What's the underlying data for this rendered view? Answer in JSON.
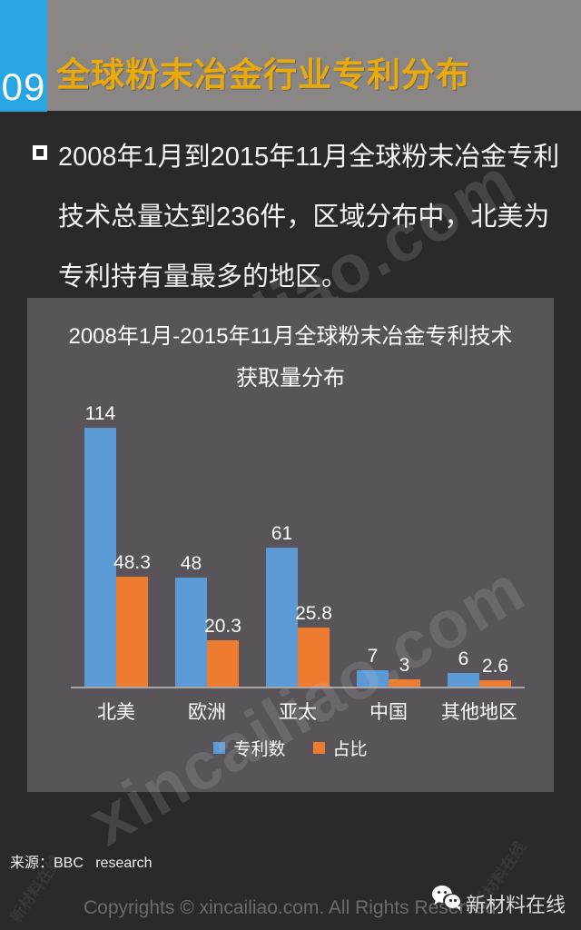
{
  "header": {
    "index": "09",
    "title": "全球粉末冶金行业专利分布",
    "accent_color": "#29a5e3",
    "title_color": "#e9aa0a",
    "band_color": "#8a8685"
  },
  "intro": {
    "lines": [
      "2008年1月到2015年11月全球粉末冶金专利",
      "技术总量达到236件，区域分布中，北美为",
      "专利持有量最多的地区。"
    ]
  },
  "chart_data": {
    "type": "bar",
    "title_lines": [
      "2008年1月-2015年11月全球粉末冶金专利技术",
      "获取量分布"
    ],
    "title": "2008年1月-2015年11月全球粉末冶金专利技术获取量分布",
    "categories": [
      "北美",
      "欧洲",
      "亚太",
      "中国",
      "其他地区"
    ],
    "series": [
      {
        "name": "专利数",
        "color": "#5b9ad5",
        "values": [
          114,
          48,
          61,
          7,
          6
        ]
      },
      {
        "name": "占比",
        "color": "#ed7c31",
        "values": [
          48.3,
          20.3,
          25.8,
          3,
          2.6
        ]
      }
    ],
    "ylim": [
      0,
      120
    ],
    "grid": false,
    "legend_position": "bottom",
    "panel_color": "#585459"
  },
  "source": {
    "label": "来源：BBC   research"
  },
  "footer": {
    "copyright": "Copyrights © xincailiao.com. All Rights Reserved",
    "brand": "新材料在线"
  },
  "watermark": {
    "text": "xincailiao.com",
    "stamp": "新材料在线"
  }
}
